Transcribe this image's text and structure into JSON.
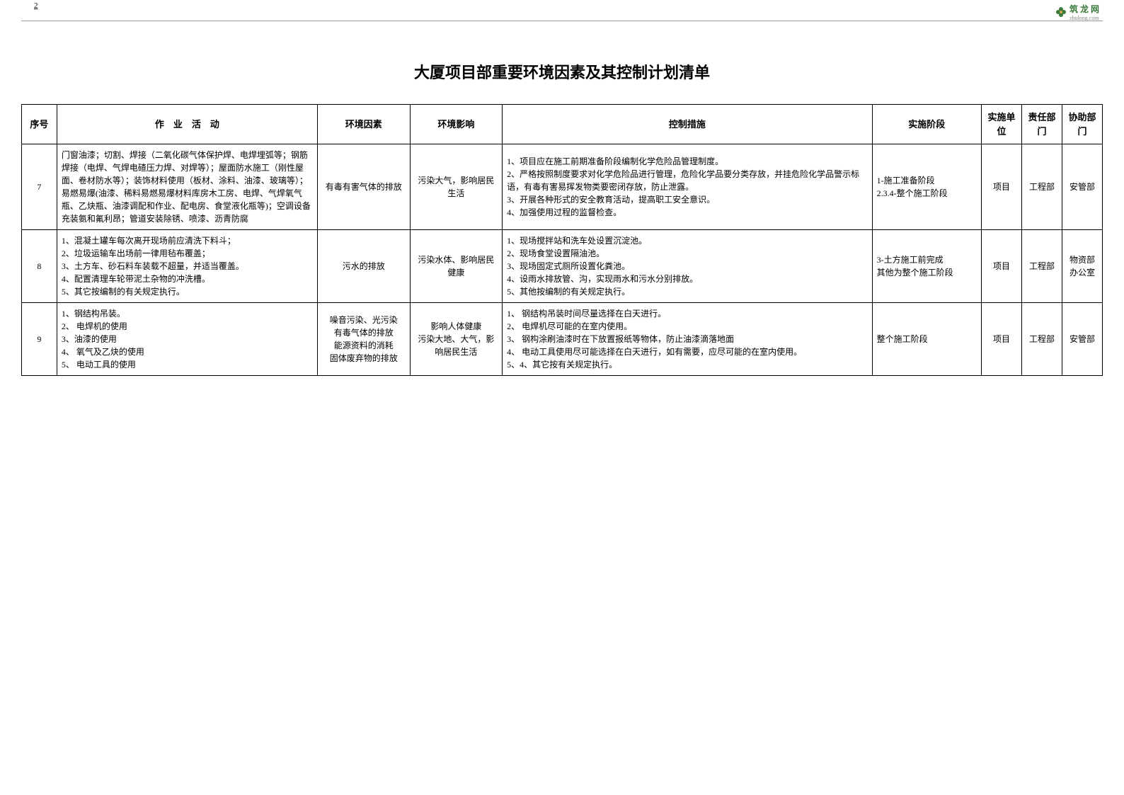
{
  "header": {
    "page_number": "2",
    "logo_text": "筑 龙 网",
    "logo_sub": "zhulong.com",
    "logo_color": "#3a7a3a"
  },
  "title": "大厦项目部重要环境因素及其控制计划清单",
  "columns": {
    "seq": "序号",
    "activity": "作　业　活　动",
    "factor": "环境因素",
    "impact": "环境影响",
    "measures": "控制措施",
    "stage": "实施阶段",
    "unit": "实施单位",
    "resp": "责任部门",
    "assist": "协助部门"
  },
  "rows": [
    {
      "seq": "7",
      "activity": "门窗油漆；切割、焊接（二氧化碳气体保护焊、电焊埋弧等；钢筋焊接（电焊、气焊电碴压力焊、对焊等）；屋面防水施工（刚性屋面、卷材防水等）；装饰材料使用（板材、涂料、油漆、玻璃等）；易燃易爆(油漆、稀料易燃易爆材料库房木工房、电焊、气焊氧气瓶、乙炔瓶、油漆调配和作业、配电房、食堂液化瓶等)；空调设备充装氨和氟利昂；管道安装除锈、喷漆、沥青防腐",
      "factor": "有毒有害气体的排放",
      "impact": "污染大气，影响居民生活",
      "measures": "1、项目应在施工前期准备阶段编制化学危险品管理制度。\n2、严格按照制度要求对化学危险品进行管理，危险化学品要分类存放，并挂危险化学品警示标语，有毒有害易挥发物类要密闭存放，防止泄露。\n3、开展各种形式的安全教育活动，提高职工安全意识。\n4、加强使用过程的监督检查。",
      "stage": "1-施工准备阶段\n2.3.4-整个施工阶段",
      "unit": "项目",
      "resp": "工程部",
      "assist": "安管部"
    },
    {
      "seq": "8",
      "activity": "1、混凝土罐车每次离开现场前应清洗下料斗；\n2、垃圾运输车出场前一律用毡布覆盖；\n3、土方车、砂石料车装载不超量，并适当覆盖。\n4、配置清理车轮带泥土杂物的冲洗槽。\n5、其它按编制的有关规定执行。",
      "factor": "污水的排放",
      "impact": "污染水体、影响居民健康",
      "measures": "1、现场搅拌站和洗车处设置沉淀池。\n2、现场食堂设置隔油池。\n3、现场固定式厕所设置化粪池。\n4、设雨水排放管、沟，实现雨水和污水分别排放。\n5、其他按编制的有关规定执行。",
      "stage": "3-土方施工前完成\n其他为整个施工阶段",
      "unit": "项目",
      "resp": "工程部",
      "assist": "物资部\n办公室"
    },
    {
      "seq": "9",
      "activity": "1、钢结构吊装。\n2、 电焊机的使用\n3、油漆的使用\n4、 氧气及乙炔的使用\n5、 电动工具的使用",
      "factor": "噪音污染、光污染\n有毒气体的排放\n能源资料的消耗\n固体废弃物的排放",
      "impact": "影响人体健康\n污染大地、大气，影响居民生活",
      "measures": "1、 钢结构吊装时间尽量选择在白天进行。\n2、 电焊机尽可能的在室内使用。\n3、 钢构涂刷油漆时在下放置报纸等物体，防止油漆滴落地面\n4、 电动工具使用尽可能选择在白天进行，如有需要，应尽可能的在室内使用。\n5、4、其它按有关规定执行。",
      "stage": "整个施工阶段",
      "unit": "项目",
      "resp": "工程部",
      "assist": "安管部"
    }
  ]
}
